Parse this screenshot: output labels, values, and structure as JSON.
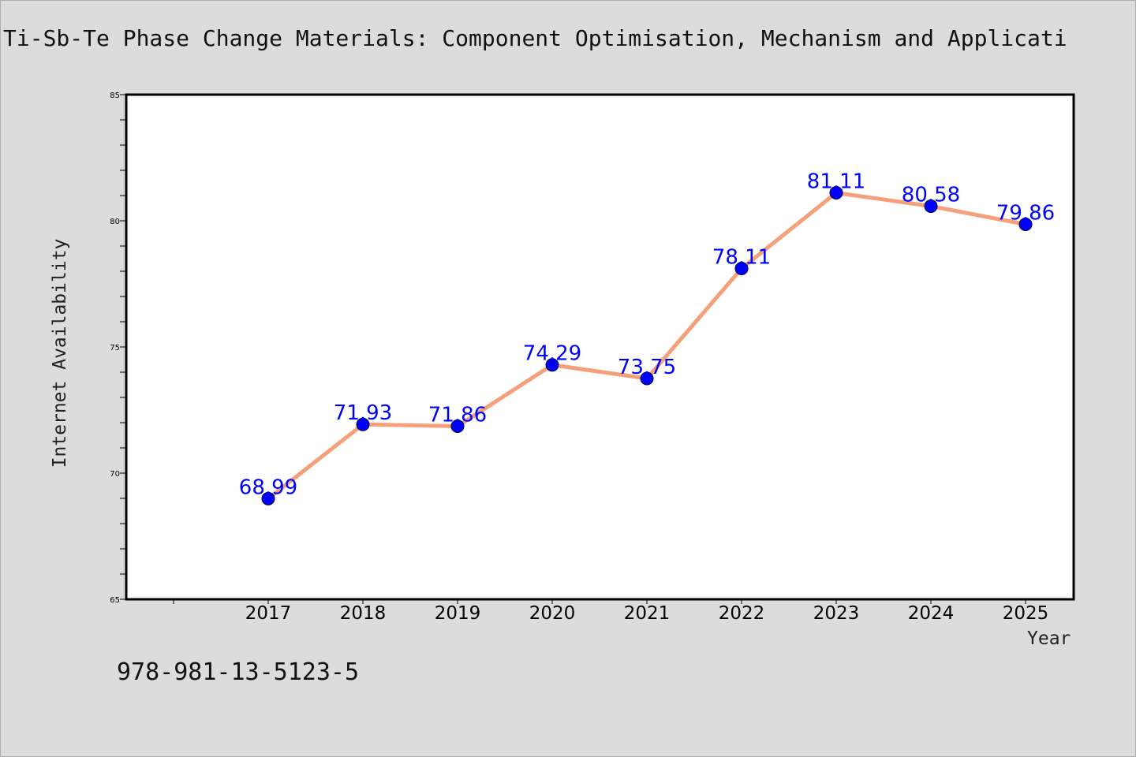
{
  "chart_data": {
    "type": "line",
    "title": "Ti-Sb-Te Phase Change Materials: Component Optimisation, Mechanism and Applicati",
    "xlabel": "Year",
    "ylabel": "Internet Availability",
    "x": [
      "2017",
      "2018",
      "2019",
      "2020",
      "2021",
      "2022",
      "2023",
      "2024",
      "2025"
    ],
    "series": [
      {
        "values": [
          68.99,
          71.93,
          71.86,
          74.29,
          73.75,
          78.11,
          81.11,
          80.58,
          79.86
        ]
      }
    ],
    "ylim": [
      65,
      85
    ],
    "yticks": [
      65,
      70,
      75,
      80,
      85
    ],
    "grid": false,
    "colors": {
      "line": "#f4a07a",
      "marker": "#0000ff",
      "data_label": "#0000ff"
    }
  },
  "footnote": "978-981-13-5123-5"
}
